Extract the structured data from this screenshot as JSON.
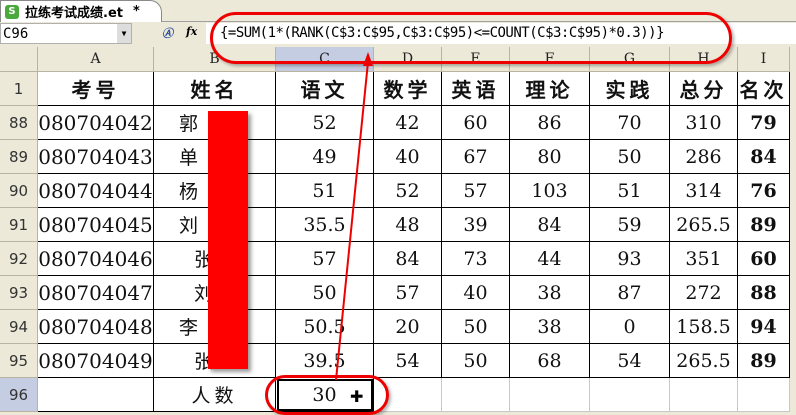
{
  "tab": {
    "title": "拉练考试成绩.et",
    "modified": "*"
  },
  "formula_bar": {
    "cell": "C96",
    "formula": "{=SUM(1*(RANK(C$3:C$95,C$3:C$95)<=COUNT(C$3:C$95)*0.3))}"
  },
  "columns": [
    "A",
    "B",
    "C",
    "D",
    "E",
    "F",
    "G",
    "H",
    "I"
  ],
  "selected_column": "C",
  "headers": {
    "row": "1",
    "cells": [
      "考号",
      "姓名",
      "语文",
      "数学",
      "英语",
      "理论",
      "实践",
      "总分",
      "名次"
    ]
  },
  "rows": [
    {
      "row": "88",
      "id": "080704042",
      "name": "郭",
      "c": "52",
      "d": "42",
      "e": "60",
      "f": "86",
      "g": "70",
      "h": "310",
      "rank": "79"
    },
    {
      "row": "89",
      "id": "080704043",
      "name": "单",
      "c": "49",
      "d": "40",
      "e": "67",
      "f": "80",
      "g": "50",
      "h": "286",
      "rank": "84"
    },
    {
      "row": "90",
      "id": "080704044",
      "name": "杨",
      "c": "51",
      "d": "52",
      "e": "57",
      "f": "103",
      "g": "51",
      "h": "314",
      "rank": "76"
    },
    {
      "row": "91",
      "id": "080704045",
      "name": "刘",
      "c": "35.5",
      "d": "48",
      "e": "39",
      "f": "84",
      "g": "59",
      "h": "265.5",
      "rank": "89"
    },
    {
      "row": "92",
      "id": "080704046",
      "name": "张",
      "c": "57",
      "d": "84",
      "e": "73",
      "f": "44",
      "g": "93",
      "h": "351",
      "rank": "60"
    },
    {
      "row": "93",
      "id": "080704047",
      "name": "刘",
      "c": "50",
      "d": "57",
      "e": "40",
      "f": "38",
      "g": "87",
      "h": "272",
      "rank": "88"
    },
    {
      "row": "94",
      "id": "080704048",
      "name": "李",
      "c": "50.5",
      "d": "20",
      "e": "50",
      "f": "38",
      "g": "0",
      "h": "158.5",
      "rank": "94"
    },
    {
      "row": "95",
      "id": "080704049",
      "name": "张",
      "c": "39.5",
      "d": "54",
      "e": "50",
      "f": "68",
      "g": "54",
      "h": "265.5",
      "rank": "89"
    }
  ],
  "summary": {
    "row": "96",
    "label": "人数",
    "value": "30"
  },
  "annotation_color": "#e00000"
}
